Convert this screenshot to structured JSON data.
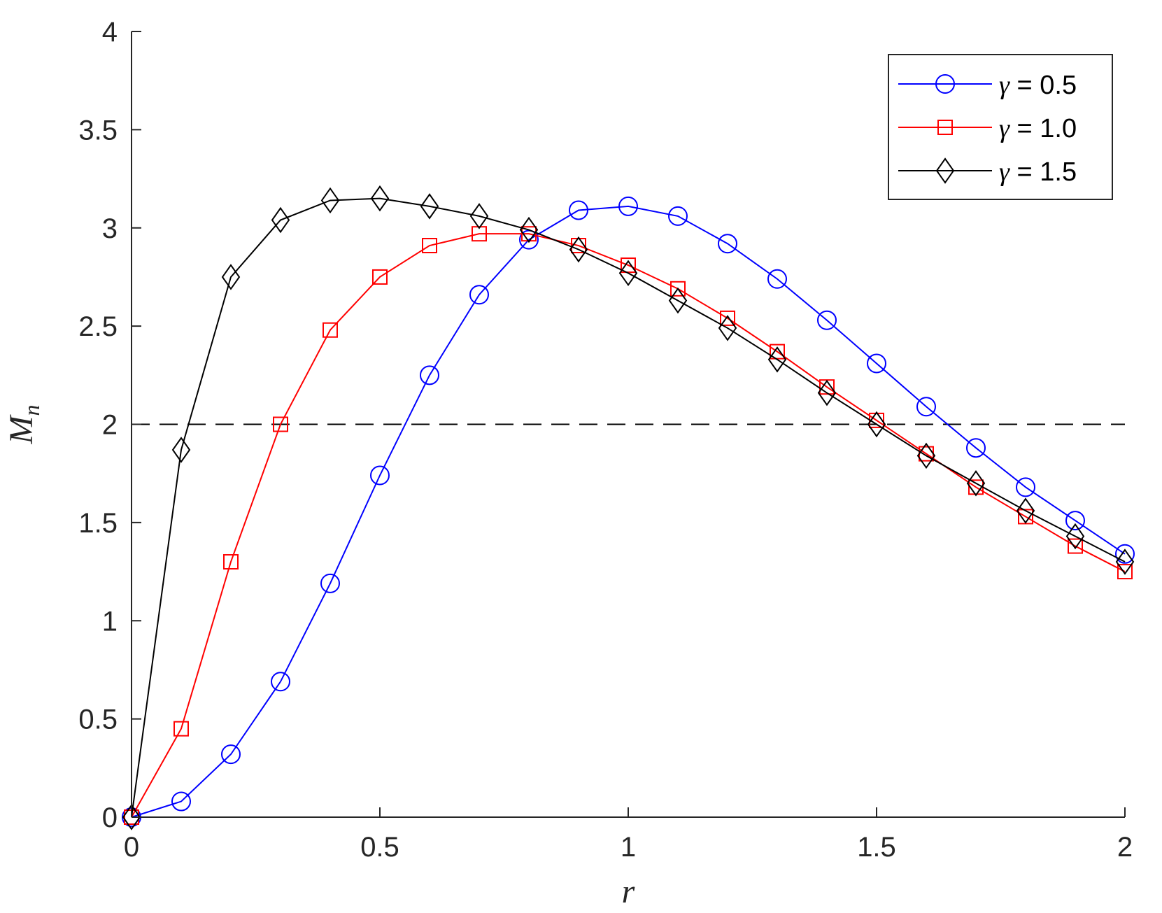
{
  "chart_data": {
    "type": "line",
    "xlabel": "r",
    "ylabel": "M",
    "ylabel_subscript": "n",
    "xlim": [
      0,
      2
    ],
    "ylim": [
      0,
      4
    ],
    "xticks": [
      "0",
      "0.5",
      "1",
      "1.5",
      "2"
    ],
    "yticks": [
      "0",
      "0.5",
      "1",
      "1.5",
      "2",
      "2.5",
      "3",
      "3.5",
      "4"
    ],
    "x": [
      0,
      0.1,
      0.2,
      0.3,
      0.4,
      0.5,
      0.6,
      0.7,
      0.8,
      0.9,
      1.0,
      1.1,
      1.2,
      1.3,
      1.4,
      1.5,
      1.6,
      1.7,
      1.8,
      1.9,
      2.0
    ],
    "series": [
      {
        "name": "γ = 0.5",
        "name_symbol": "γ",
        "name_value": " = 0.5",
        "color": "#0000ff",
        "marker": "circle",
        "values": [
          0,
          0.08,
          0.32,
          0.69,
          1.19,
          1.74,
          2.25,
          2.66,
          2.94,
          3.09,
          3.11,
          3.06,
          2.92,
          2.74,
          2.53,
          2.31,
          2.09,
          1.88,
          1.68,
          1.51,
          1.34
        ]
      },
      {
        "name": "γ = 1.0",
        "name_symbol": "γ",
        "name_value": " = 1.0",
        "color": "#ff0000",
        "marker": "square",
        "values": [
          0,
          0.45,
          1.3,
          2.0,
          2.48,
          2.75,
          2.91,
          2.97,
          2.97,
          2.91,
          2.81,
          2.69,
          2.54,
          2.37,
          2.19,
          2.02,
          1.85,
          1.68,
          1.53,
          1.38,
          1.25
        ]
      },
      {
        "name": "γ = 1.5",
        "name_symbol": "γ",
        "name_value": " = 1.5",
        "color": "#000000",
        "marker": "diamond",
        "values": [
          0,
          1.87,
          2.75,
          3.04,
          3.14,
          3.15,
          3.11,
          3.06,
          2.99,
          2.89,
          2.77,
          2.63,
          2.49,
          2.33,
          2.16,
          2.0,
          1.84,
          1.7,
          1.56,
          1.43,
          1.3
        ]
      }
    ],
    "reference_line": {
      "y": 2,
      "style": "dashed",
      "color": "#000000"
    },
    "legend_position": "top-right",
    "grid": false
  }
}
